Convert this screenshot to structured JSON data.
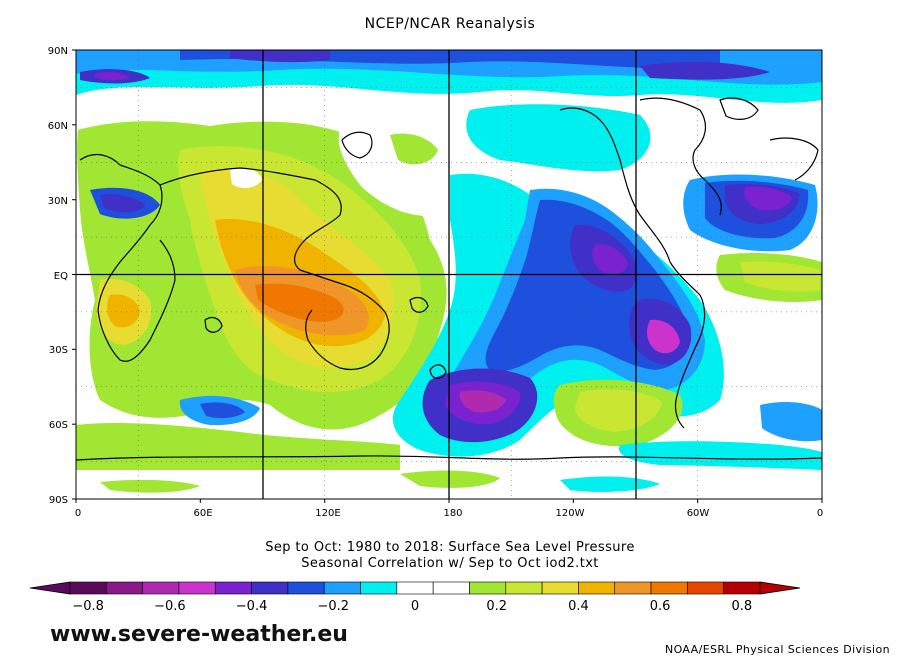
{
  "title": "NCEP/NCAR Reanalysis",
  "subtitle_line1": "Sep to Oct: 1980 to 2018: Surface Sea Level Pressure",
  "subtitle_line2": "Seasonal Correlation w/ Sep to Oct iod2.txt",
  "lat_labels": [
    "90N",
    "60N",
    "30N",
    "EQ",
    "30S",
    "60S",
    "90S"
  ],
  "lon_labels": [
    "0",
    "60E",
    "120E",
    "180",
    "120W",
    "60W",
    "0"
  ],
  "colorbar": {
    "ticks": [
      "−0.8",
      "−0.6",
      "−0.4",
      "−0.2",
      "0",
      "0.2",
      "0.4",
      "0.6",
      "0.8"
    ],
    "bins": [
      {
        "value": -0.85,
        "color": "#5a0a5a"
      },
      {
        "value": -0.75,
        "color": "#8a1a8a"
      },
      {
        "value": -0.65,
        "color": "#b02ab0"
      },
      {
        "value": -0.55,
        "color": "#cc33cc"
      },
      {
        "value": -0.45,
        "color": "#7a22d0"
      },
      {
        "value": -0.35,
        "color": "#4030c8"
      },
      {
        "value": -0.25,
        "color": "#1e50dd"
      },
      {
        "value": -0.15,
        "color": "#1ea0ff"
      },
      {
        "value": -0.05,
        "color": "#00f0f0"
      },
      {
        "value": 0.0,
        "color": "#ffffff"
      },
      {
        "value": 0.05,
        "color": "#ffffff"
      },
      {
        "value": 0.15,
        "color": "#a0e632"
      },
      {
        "value": 0.25,
        "color": "#c8e632"
      },
      {
        "value": 0.35,
        "color": "#e6dc32"
      },
      {
        "value": 0.45,
        "color": "#f0b400"
      },
      {
        "value": 0.55,
        "color": "#f09628"
      },
      {
        "value": 0.65,
        "color": "#f07800"
      },
      {
        "value": 0.75,
        "color": "#e64600"
      },
      {
        "value": 0.85,
        "color": "#b40000"
      }
    ]
  },
  "watermark": "www.severe-weather.eu",
  "credit": "NOAA/ESRL Physical Sciences Division"
}
